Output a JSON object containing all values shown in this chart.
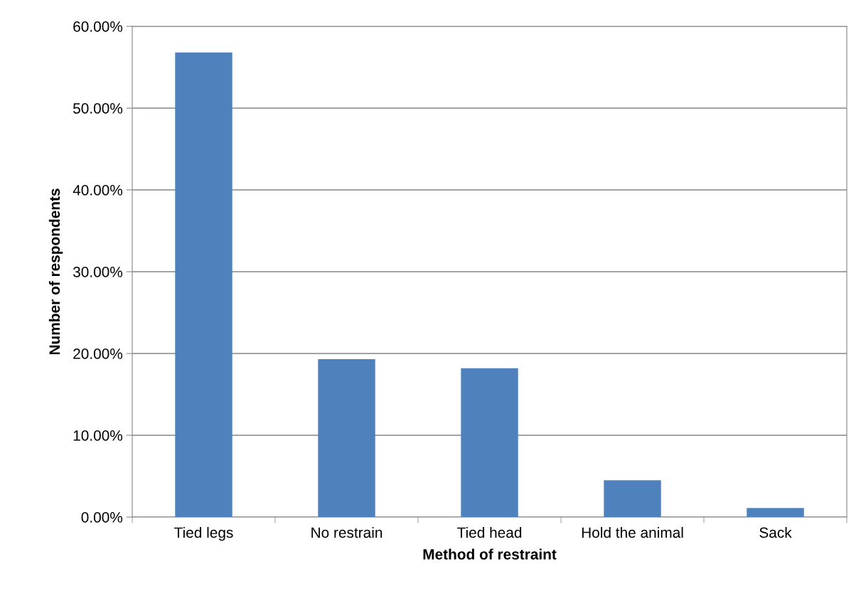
{
  "chart_data": {
    "type": "bar",
    "xlabel": "Method of restraint",
    "ylabel": "Number of respondents",
    "categories": [
      "Tied legs",
      "No restrain",
      "Tied head",
      "Hold the animal",
      "Sack"
    ],
    "values": [
      56.8,
      19.3,
      18.2,
      4.5,
      1.1
    ],
    "color": "#4f81bd",
    "ylim": [
      0,
      60
    ],
    "yticks": [
      {
        "value": 0,
        "label": "0.00%"
      },
      {
        "value": 10,
        "label": "10.00%"
      },
      {
        "value": 20,
        "label": "20.00%"
      },
      {
        "value": 30,
        "label": "30.00%"
      },
      {
        "value": 40,
        "label": "40.00%"
      },
      {
        "value": 50,
        "label": "50.00%"
      },
      {
        "value": 60,
        "label": "60.00%"
      }
    ],
    "grid": "y",
    "legend": false
  }
}
